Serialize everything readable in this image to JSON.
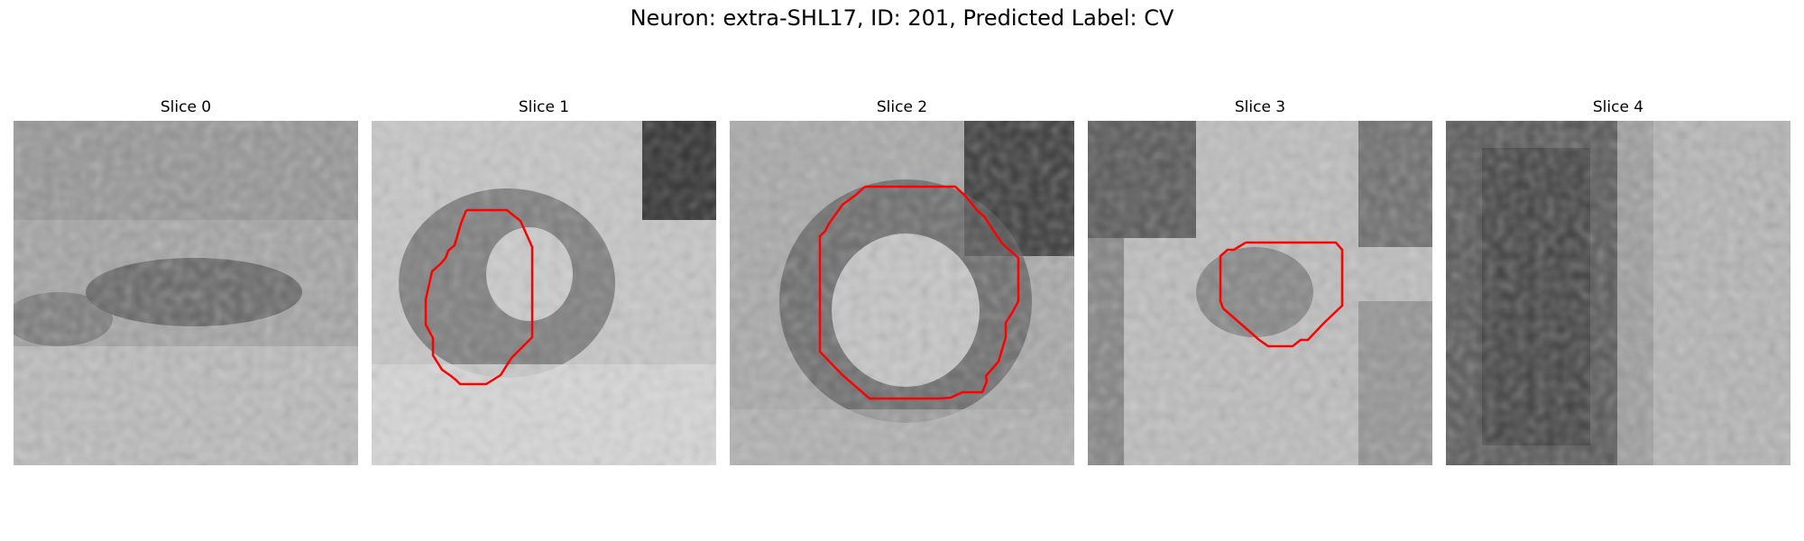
{
  "figure": {
    "title": "Neuron: extra-SHL17, ID: 201, Predicted Label: CV"
  },
  "panels": [
    {
      "title": "Slice 0",
      "tone": "medium-gray, dark horizontal band across center",
      "has_contour": false
    },
    {
      "title": "Slice 1",
      "tone": "light background, dark ring around bright center, dark top-right corner",
      "has_contour": true
    },
    {
      "title": "Slice 2",
      "tone": "dark ring around bright center, dark top-right corner",
      "has_contour": true
    },
    {
      "title": "Slice 3",
      "tone": "light background, dark top-left corner, small dark center",
      "has_contour": true
    },
    {
      "title": "Slice 4",
      "tone": "dark vertical band on left, lighter right side",
      "has_contour": false
    }
  ],
  "colors": {
    "contour": "#ff0000",
    "background": "#ffffff"
  }
}
